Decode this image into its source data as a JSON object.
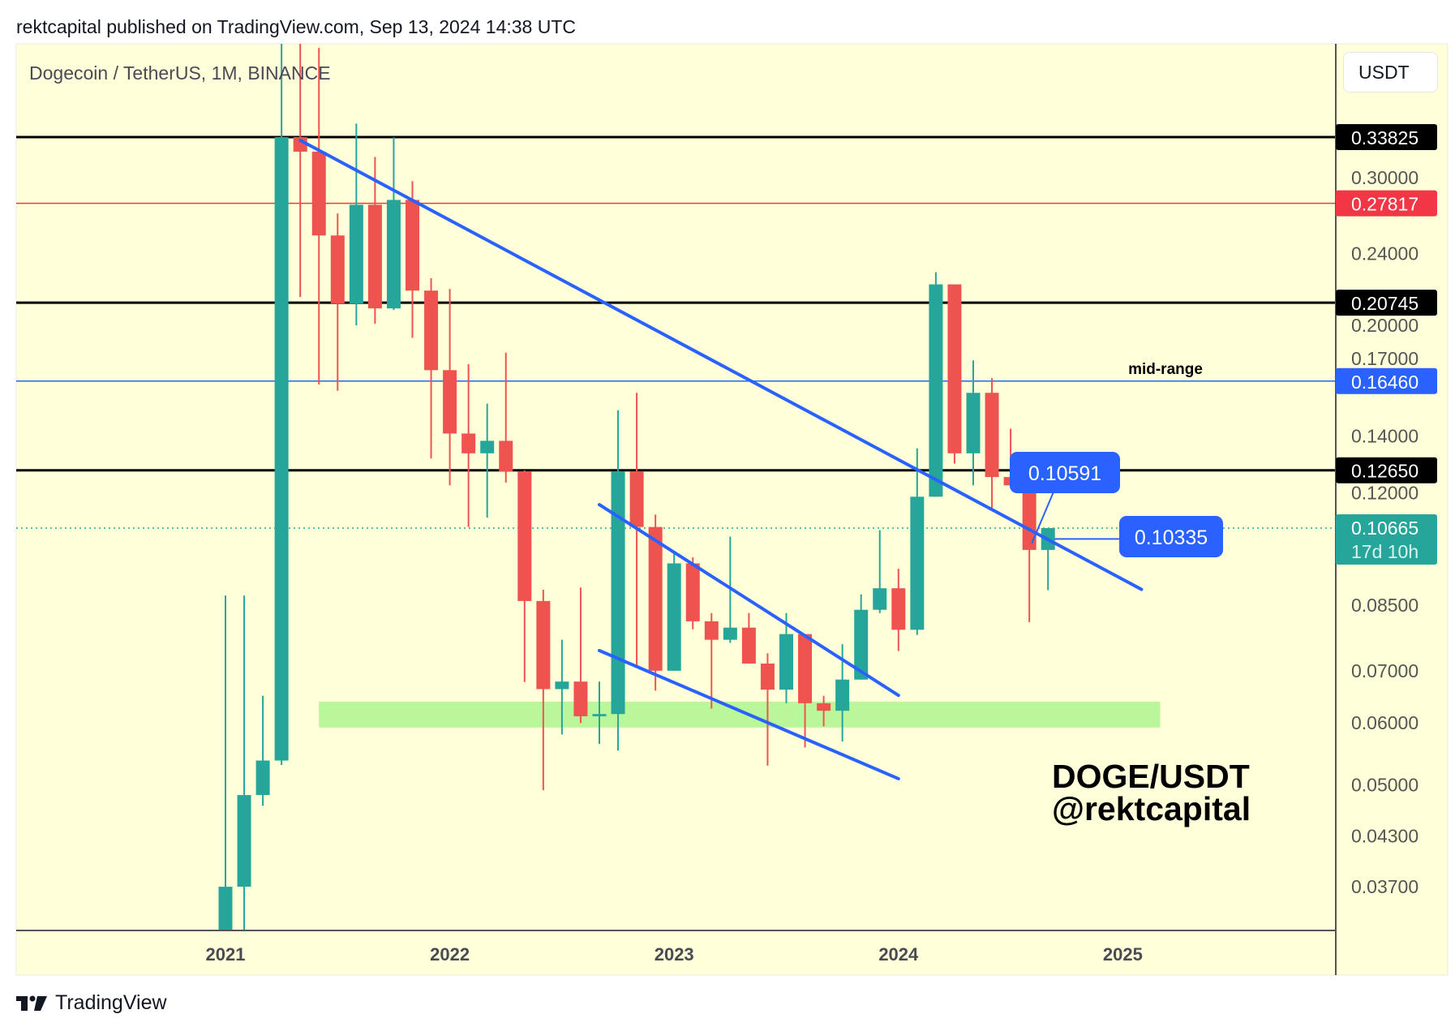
{
  "header": {
    "text": "rektcapital published on TradingView.com, Sep 13, 2024 14:38 UTC"
  },
  "footer": {
    "brand": "TradingView"
  },
  "currency_button": "USDT",
  "chart_data": {
    "type": "candlestick",
    "title": "Dogecoin / TetherUS, 1M, BINANCE",
    "watermark": [
      "DOGE/USDT",
      "@rektcapital"
    ],
    "y_scale": "log",
    "ylim": [
      0.0325,
      0.445
    ],
    "x_ticks": [
      "2021",
      "2022",
      "2023",
      "2024",
      "2025"
    ],
    "y_ticks": [
      "0.30000",
      "0.24000",
      "0.20000",
      "0.17000",
      "0.14000",
      "0.12000",
      "0.08500",
      "0.07000",
      "0.06000",
      "0.05000",
      "0.04300",
      "0.03700"
    ],
    "colors": {
      "up": "#26a69a",
      "down": "#ef5350",
      "background": "#ffffd9",
      "trendline": "#2962ff",
      "zone": "#b9f79a"
    },
    "candles": [
      {
        "t": "2021-01",
        "o": 0.0047,
        "h": 0.0874,
        "l": 0.0046,
        "c": 0.037
      },
      {
        "t": "2021-02",
        "o": 0.037,
        "h": 0.0874,
        "l": 0.03,
        "c": 0.0485
      },
      {
        "t": "2021-03",
        "o": 0.0485,
        "h": 0.065,
        "l": 0.047,
        "c": 0.0537
      },
      {
        "t": "2021-04",
        "o": 0.0537,
        "h": 0.45,
        "l": 0.053,
        "c": 0.3382
      },
      {
        "t": "2021-05",
        "o": 0.3382,
        "h": 0.74,
        "l": 0.211,
        "c": 0.324
      },
      {
        "t": "2021-06",
        "o": 0.324,
        "h": 0.44,
        "l": 0.163,
        "c": 0.253
      },
      {
        "t": "2021-07",
        "o": 0.253,
        "h": 0.27,
        "l": 0.16,
        "c": 0.207
      },
      {
        "t": "2021-08",
        "o": 0.207,
        "h": 0.352,
        "l": 0.194,
        "c": 0.277
      },
      {
        "t": "2021-09",
        "o": 0.277,
        "h": 0.319,
        "l": 0.195,
        "c": 0.204
      },
      {
        "t": "2021-10",
        "o": 0.204,
        "h": 0.338,
        "l": 0.203,
        "c": 0.281
      },
      {
        "t": "2021-11",
        "o": 0.281,
        "h": 0.297,
        "l": 0.187,
        "c": 0.215
      },
      {
        "t": "2021-12",
        "o": 0.215,
        "h": 0.223,
        "l": 0.131,
        "c": 0.17
      },
      {
        "t": "2022-01",
        "o": 0.17,
        "h": 0.216,
        "l": 0.121,
        "c": 0.141
      },
      {
        "t": "2022-02",
        "o": 0.141,
        "h": 0.173,
        "l": 0.107,
        "c": 0.133
      },
      {
        "t": "2022-03",
        "o": 0.133,
        "h": 0.154,
        "l": 0.11,
        "c": 0.138
      },
      {
        "t": "2022-04",
        "o": 0.138,
        "h": 0.179,
        "l": 0.122,
        "c": 0.126
      },
      {
        "t": "2022-05",
        "o": 0.126,
        "h": 0.1265,
        "l": 0.0677,
        "c": 0.086
      },
      {
        "t": "2022-06",
        "o": 0.086,
        "h": 0.0889,
        "l": 0.0492,
        "c": 0.0663
      },
      {
        "t": "2022-07",
        "o": 0.0663,
        "h": 0.0767,
        "l": 0.058,
        "c": 0.0678
      },
      {
        "t": "2022-08",
        "o": 0.0678,
        "h": 0.0895,
        "l": 0.06,
        "c": 0.0612
      },
      {
        "t": "2022-09",
        "o": 0.0612,
        "h": 0.0678,
        "l": 0.0564,
        "c": 0.0616
      },
      {
        "t": "2022-10",
        "o": 0.0616,
        "h": 0.151,
        "l": 0.0553,
        "c": 0.126
      },
      {
        "t": "2022-11",
        "o": 0.126,
        "h": 0.159,
        "l": 0.0706,
        "c": 0.107
      },
      {
        "t": "2022-12",
        "o": 0.107,
        "h": 0.111,
        "l": 0.066,
        "c": 0.07
      },
      {
        "t": "2023-01",
        "o": 0.07,
        "h": 0.0991,
        "l": 0.07,
        "c": 0.0961
      },
      {
        "t": "2023-02",
        "o": 0.0961,
        "h": 0.0978,
        "l": 0.0791,
        "c": 0.081
      },
      {
        "t": "2023-03",
        "o": 0.081,
        "h": 0.083,
        "l": 0.0626,
        "c": 0.0767
      },
      {
        "t": "2023-04",
        "o": 0.0767,
        "h": 0.104,
        "l": 0.076,
        "c": 0.0795
      },
      {
        "t": "2023-05",
        "o": 0.0795,
        "h": 0.083,
        "l": 0.0715,
        "c": 0.0715
      },
      {
        "t": "2023-06",
        "o": 0.0715,
        "h": 0.0737,
        "l": 0.0529,
        "c": 0.0662
      },
      {
        "t": "2023-07",
        "o": 0.0662,
        "h": 0.083,
        "l": 0.0636,
        "c": 0.078
      },
      {
        "t": "2023-08",
        "o": 0.078,
        "h": 0.078,
        "l": 0.0558,
        "c": 0.0636
      },
      {
        "t": "2023-09",
        "o": 0.0636,
        "h": 0.065,
        "l": 0.0594,
        "c": 0.0622
      },
      {
        "t": "2023-10",
        "o": 0.0622,
        "h": 0.0757,
        "l": 0.0568,
        "c": 0.0682
      },
      {
        "t": "2023-11",
        "o": 0.0682,
        "h": 0.0877,
        "l": 0.0682,
        "c": 0.0838
      },
      {
        "t": "2023-12",
        "o": 0.0838,
        "h": 0.106,
        "l": 0.083,
        "c": 0.0893
      },
      {
        "t": "2024-01",
        "o": 0.0893,
        "h": 0.0946,
        "l": 0.0742,
        "c": 0.079
      },
      {
        "t": "2024-02",
        "o": 0.079,
        "h": 0.135,
        "l": 0.0778,
        "c": 0.117
      },
      {
        "t": "2024-03",
        "o": 0.117,
        "h": 0.227,
        "l": 0.117,
        "c": 0.219
      },
      {
        "t": "2024-04",
        "o": 0.219,
        "h": 0.219,
        "l": 0.129,
        "c": 0.133
      },
      {
        "t": "2024-05",
        "o": 0.133,
        "h": 0.175,
        "l": 0.121,
        "c": 0.159
      },
      {
        "t": "2024-06",
        "o": 0.159,
        "h": 0.166,
        "l": 0.113,
        "c": 0.124
      },
      {
        "t": "2024-07",
        "o": 0.124,
        "h": 0.143,
        "l": 0.121,
        "c": 0.121
      },
      {
        "t": "2024-08",
        "o": 0.121,
        "h": 0.1215,
        "l": 0.0808,
        "c": 0.1
      },
      {
        "t": "2024-09",
        "o": 0.1,
        "h": 0.1066,
        "l": 0.0888,
        "c": 0.10665
      }
    ],
    "levels": [
      {
        "price": 0.33825,
        "label": "0.33825",
        "color": "#000000",
        "style": "thick"
      },
      {
        "price": 0.27817,
        "label": "0.27817",
        "color": "#f23645",
        "style": "thin"
      },
      {
        "price": 0.20745,
        "label": "0.20745",
        "color": "#000000",
        "style": "thick"
      },
      {
        "price": 0.1646,
        "label": "0.16460",
        "color": "#2962ff",
        "style": "thin",
        "annotation": "mid-range"
      },
      {
        "price": 0.1265,
        "label": "0.12650",
        "color": "#000000",
        "style": "thick"
      }
    ],
    "last_price": {
      "price": 0.10665,
      "label": "0.10665",
      "countdown": "17d 10h",
      "color": "#26a69a"
    },
    "trendlines": [
      {
        "from": [
          "2021-05",
          0.335
        ],
        "to": [
          "2025-02",
          0.089
        ]
      },
      {
        "from": [
          "2022-09",
          0.1143
        ],
        "to": [
          "2024-01",
          0.0651
        ]
      },
      {
        "from": [
          "2022-09",
          0.0743
        ],
        "to": [
          "2024-01",
          0.0509
        ]
      }
    ],
    "zone": {
      "from": "2021-06",
      "to": "2025-03",
      "low": 0.0592,
      "high": 0.0639
    },
    "callouts": [
      {
        "label": "0.10591",
        "anchor": [
          "2024-08",
          0.1
        ]
      },
      {
        "label": "0.10335",
        "anchor": [
          "2024-09",
          0.1033
        ]
      }
    ]
  }
}
